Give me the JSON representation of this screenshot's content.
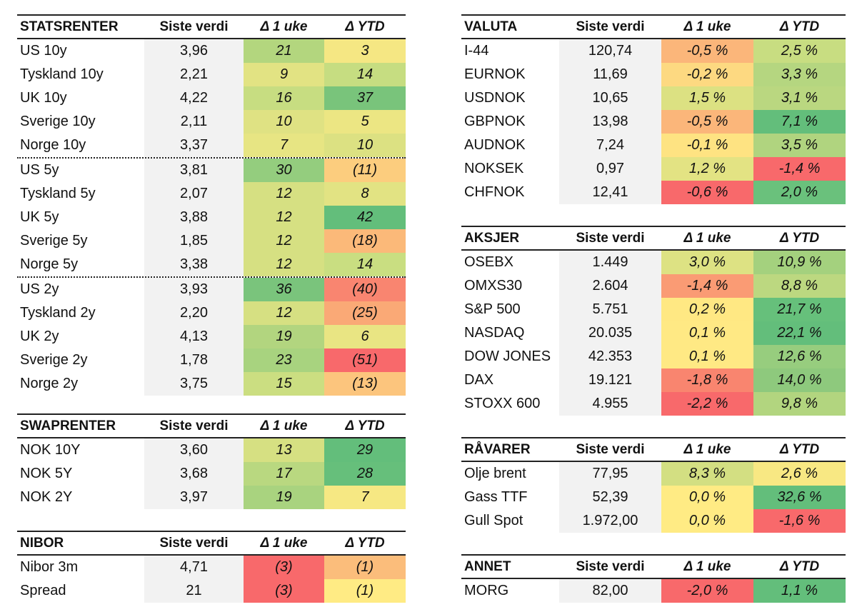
{
  "columns": {
    "last": "Siste verdi",
    "week": "Δ 1 uke",
    "ytd": "Δ YTD"
  },
  "tables": {
    "statsrenter": {
      "title": "STATSRENTER",
      "rows": [
        {
          "name": "US 10y",
          "last": "3,96",
          "week": "21",
          "ytd": "3",
          "week_color": "#b3d67e",
          "ytd_color": "#f5e783",
          "sep": false
        },
        {
          "name": "Tyskland 10y",
          "last": "2,21",
          "week": "9",
          "ytd": "14",
          "week_color": "#e2e383",
          "ytd_color": "#c6dd81",
          "sep": false
        },
        {
          "name": "UK 10y",
          "last": "4,22",
          "week": "16",
          "ytd": "37",
          "week_color": "#c7dd81",
          "ytd_color": "#79c47b",
          "sep": false
        },
        {
          "name": "Sverige 10y",
          "last": "2,11",
          "week": "10",
          "ytd": "5",
          "week_color": "#dfe283",
          "ytd_color": "#ece683",
          "sep": false
        },
        {
          "name": "Norge 10y",
          "last": "3,37",
          "week": "7",
          "ytd": "10",
          "week_color": "#e7e583",
          "ytd_color": "#dce182",
          "sep": true
        },
        {
          "name": "US 5y",
          "last": "3,81",
          "week": "30",
          "ytd": "(11)",
          "week_color": "#94cd7e",
          "ytd_color": "#fccd7e",
          "sep": false
        },
        {
          "name": "Tyskland 5y",
          "last": "2,07",
          "week": "12",
          "ytd": "8",
          "week_color": "#d6e082",
          "ytd_color": "#e2e383",
          "sep": false
        },
        {
          "name": "UK 5y",
          "last": "3,88",
          "week": "12",
          "ytd": "42",
          "week_color": "#d6e082",
          "ytd_color": "#63be7b",
          "sep": false
        },
        {
          "name": "Sverige 5y",
          "last": "1,85",
          "week": "12",
          "ytd": "(18)",
          "week_color": "#d6e082",
          "ytd_color": "#fbb979",
          "sep": false
        },
        {
          "name": "Norge 5y",
          "last": "3,38",
          "week": "12",
          "ytd": "14",
          "week_color": "#d6e082",
          "ytd_color": "#c9de81",
          "sep": true
        },
        {
          "name": "US 2y",
          "last": "3,93",
          "week": "36",
          "ytd": "(40)",
          "week_color": "#7ac47c",
          "ytd_color": "#f98570",
          "sep": false
        },
        {
          "name": "Tyskland 2y",
          "last": "2,20",
          "week": "12",
          "ytd": "(25)",
          "week_color": "#d6e082",
          "ytd_color": "#faa976",
          "sep": false
        },
        {
          "name": "UK 2y",
          "last": "4,13",
          "week": "19",
          "ytd": "6",
          "week_color": "#b2d57f",
          "ytd_color": "#e9e583",
          "sep": false
        },
        {
          "name": "Sverige 2y",
          "last": "1,78",
          "week": "23",
          "ytd": "(51)",
          "week_color": "#a8d37f",
          "ytd_color": "#f8696b",
          "sep": false
        },
        {
          "name": "Norge 2y",
          "last": "3,75",
          "week": "15",
          "ytd": "(13)",
          "week_color": "#cbde81",
          "ytd_color": "#fcc57d",
          "sep": false
        }
      ]
    },
    "swaprenter": {
      "title": "SWAPRENTER",
      "rows": [
        {
          "name": "NOK 10Y",
          "last": "3,60",
          "week": "13",
          "ytd": "29",
          "week_color": "#d6e082",
          "ytd_color": "#63be7b"
        },
        {
          "name": "NOK 5Y",
          "last": "3,68",
          "week": "17",
          "ytd": "28",
          "week_color": "#b9d880",
          "ytd_color": "#66bf7b"
        },
        {
          "name": "NOK 2Y",
          "last": "3,97",
          "week": "19",
          "ytd": "7",
          "week_color": "#a9d37f",
          "ytd_color": "#f6e883"
        }
      ]
    },
    "nibor": {
      "title": "NIBOR",
      "rows": [
        {
          "name": "Nibor 3m",
          "last": "4,71",
          "week": "(3)",
          "ytd": "(1)",
          "week_color": "#f8696b",
          "ytd_color": "#fbbd7b"
        },
        {
          "name": "Spread",
          "last": "21",
          "week": "(3)",
          "ytd": "(1)",
          "week_color": "#f8696b",
          "ytd_color": "#ffeb84"
        }
      ]
    },
    "valuta": {
      "title": "VALUTA",
      "rows": [
        {
          "name": "I-44",
          "last": "120,74",
          "week": "-0,5 %",
          "ytd": "2,5 %",
          "week_color": "#fbb67a",
          "ytd_color": "#c8dd81"
        },
        {
          "name": "EURNOK",
          "last": "11,69",
          "week": "-0,2 %",
          "ytd": "3,3 %",
          "week_color": "#fdd981",
          "ytd_color": "#b5d680"
        },
        {
          "name": "USDNOK",
          "last": "10,65",
          "week": "1,5 %",
          "ytd": "3,1 %",
          "week_color": "#dce182",
          "ytd_color": "#bad780"
        },
        {
          "name": "GBPNOK",
          "last": "13,98",
          "week": "-0,5 %",
          "ytd": "7,1 %",
          "week_color": "#fbb67a",
          "ytd_color": "#63be7b"
        },
        {
          "name": "AUDNOK",
          "last": "7,24",
          "week": "-0,1 %",
          "ytd": "3,5 %",
          "week_color": "#fee382",
          "ytd_color": "#b0d47f"
        },
        {
          "name": "NOKSEK",
          "last": "0,97",
          "week": "1,2 %",
          "ytd": "-1,4 %",
          "week_color": "#e3e383",
          "ytd_color": "#f8696b"
        },
        {
          "name": "CHFNOK",
          "last": "12,41",
          "week": "-0,6 %",
          "ytd": "2,0 %",
          "week_color": "#f8696b",
          "ytd_color": "#6ac17c"
        }
      ]
    },
    "aksjer": {
      "title": "AKSJER",
      "rows": [
        {
          "name": "OSEBX",
          "last": "1.449",
          "week": "3,0 %",
          "ytd": "10,9 %",
          "week_color": "#dde283",
          "ytd_color": "#a4d17e"
        },
        {
          "name": "OMXS30",
          "last": "2.604",
          "week": "-1,4 %",
          "ytd": "8,8 %",
          "week_color": "#fa9b74",
          "ytd_color": "#bcd880"
        },
        {
          "name": "S&P 500",
          "last": "5.751",
          "week": "0,2 %",
          "ytd": "21,7 %",
          "week_color": "#ffe883",
          "ytd_color": "#66c07b"
        },
        {
          "name": "NASDAQ",
          "last": "20.035",
          "week": "0,1 %",
          "ytd": "22,1 %",
          "week_color": "#ffe984",
          "ytd_color": "#63be7b"
        },
        {
          "name": "DOW JONES",
          "last": "42.353",
          "week": "0,1 %",
          "ytd": "12,6 %",
          "week_color": "#ffe984",
          "ytd_color": "#97cd7e"
        },
        {
          "name": "DAX",
          "last": "19.121",
          "week": "-1,8 %",
          "ytd": "14,0 %",
          "week_color": "#f9856f",
          "ytd_color": "#8ec97d"
        },
        {
          "name": "STOXX 600",
          "last": "4.955",
          "week": "-2,2 %",
          "ytd": "9,8 %",
          "week_color": "#f8696b",
          "ytd_color": "#b2d57f"
        }
      ]
    },
    "ravarer": {
      "title": "RÅVARER",
      "rows": [
        {
          "name": "Olje brent",
          "last": "77,95",
          "week": "8,3 %",
          "ytd": "2,6 %",
          "week_color": "#d3df82",
          "ytd_color": "#f8e883"
        },
        {
          "name": "Gass TTF",
          "last": "52,39",
          "week": "0,0 %",
          "ytd": "32,6 %",
          "week_color": "#ffeb84",
          "ytd_color": "#63be7b"
        },
        {
          "name": "Gull Spot",
          "last": "1.972,00",
          "week": "0,0 %",
          "ytd": "-1,6 %",
          "week_color": "#ffeb84",
          "ytd_color": "#f8696b"
        }
      ]
    },
    "annet": {
      "title": "ANNET",
      "rows": [
        {
          "name": "MORG",
          "last": "82,00",
          "week": "-2,0 %",
          "ytd": "1,1 %",
          "week_color": "#f8696b",
          "ytd_color": "#63be7b"
        }
      ]
    }
  }
}
